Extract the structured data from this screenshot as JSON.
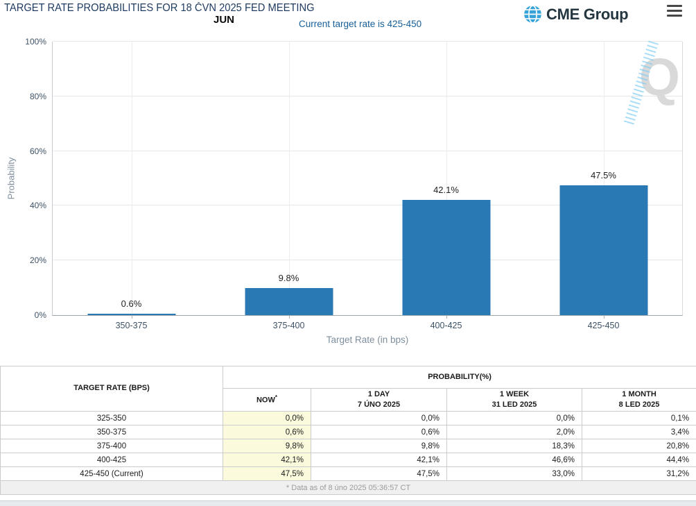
{
  "header": {
    "title": "TARGET RATE PROBABILITIES FOR 18 ČVN 2025 FED MEETING",
    "meeting_month": "JUN",
    "current_rate_note": "Current target rate is 425-450",
    "brand": "CME Group",
    "icons": {
      "logo": "globe-icon",
      "menu": "hamburger-menu-icon"
    }
  },
  "chart_data": {
    "type": "bar",
    "title": "",
    "categories": [
      "350-375",
      "375-400",
      "400-425",
      "425-450"
    ],
    "values": [
      0.6,
      9.8,
      42.1,
      47.5
    ],
    "labels": [
      "0.6%",
      "9.8%",
      "42.1%",
      "47.5%"
    ],
    "xlabel": "Target Rate (in bps)",
    "ylabel": "Probability",
    "ylim": [
      0,
      100
    ],
    "yticks": [
      "0%",
      "20%",
      "40%",
      "60%",
      "80%",
      "100%"
    ],
    "grid": true,
    "legend": "none",
    "bar_color": "#2879b4",
    "watermark": "Q"
  },
  "table": {
    "rate_header": "TARGET RATE (BPS)",
    "group_header": "PROBABILITY(%)",
    "sub_headers": [
      {
        "line1": "NOW",
        "sup": "*",
        "line2": ""
      },
      {
        "line1": "1 DAY",
        "sup": "",
        "line2": "7 ÚNO 2025"
      },
      {
        "line1": "1 WEEK",
        "sup": "",
        "line2": "31 LED 2025"
      },
      {
        "line1": "1 MONTH",
        "sup": "",
        "line2": "8 LED 2025"
      }
    ],
    "rows": [
      {
        "rate": "325-350",
        "now": "0,0%",
        "day": "0,0%",
        "week": "0,0%",
        "month": "0,1%"
      },
      {
        "rate": "350-375",
        "now": "0,6%",
        "day": "0,6%",
        "week": "2,0%",
        "month": "3,4%"
      },
      {
        "rate": "375-400",
        "now": "9,8%",
        "day": "9,8%",
        "week": "18,3%",
        "month": "20,8%"
      },
      {
        "rate": "400-425",
        "now": "42,1%",
        "day": "42,1%",
        "week": "46,6%",
        "month": "44,4%"
      },
      {
        "rate": "425-450 (Current)",
        "now": "47,5%",
        "day": "47,5%",
        "week": "33,0%",
        "month": "31,2%"
      }
    ],
    "footnote": "* Data as of 8 úno 2025 05:36:57 CT",
    "now_col_bg": "#fcfadc"
  }
}
